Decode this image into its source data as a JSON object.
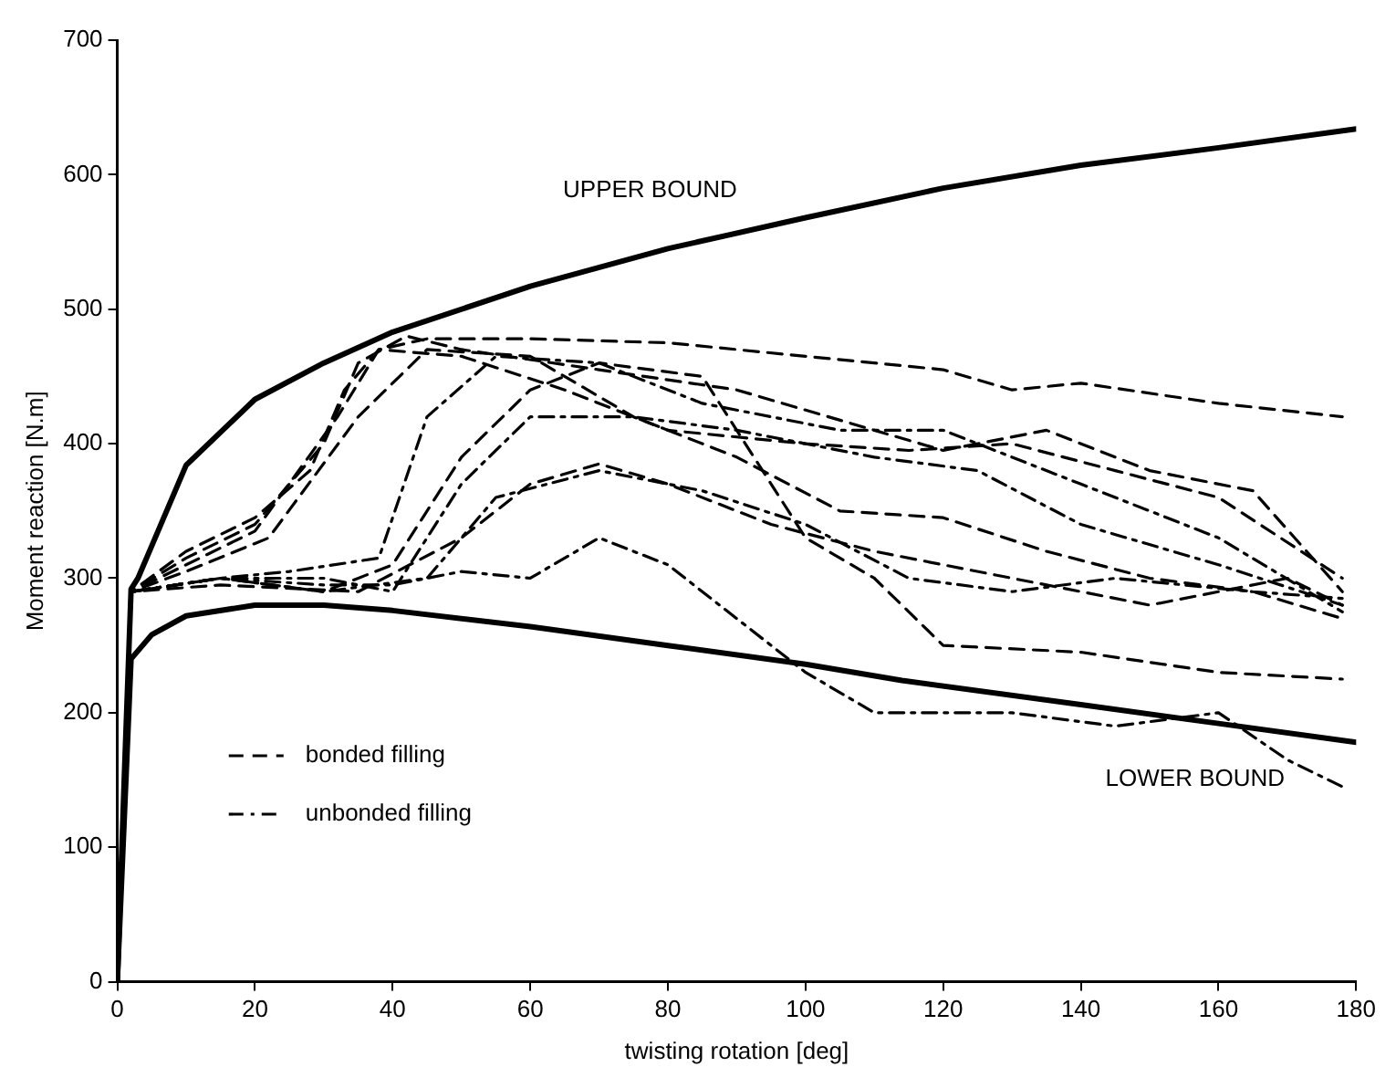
{
  "chart_data": {
    "type": "line",
    "xlabel": "twisting rotation [deg]",
    "ylabel": "Moment reaction [N.m]",
    "xlim": [
      0,
      180
    ],
    "ylim": [
      0,
      700
    ],
    "xticks": [
      0,
      20,
      40,
      60,
      80,
      100,
      120,
      140,
      160,
      180
    ],
    "yticks": [
      0,
      100,
      200,
      300,
      400,
      500,
      600,
      700
    ],
    "grid": false,
    "legend": "bottom left",
    "marker": "none",
    "annotations": [
      "UPPER BOUND",
      "LOWER BOUND"
    ],
    "series": [
      {
        "color": "#000000",
        "line_style": "solid",
        "x": [
          0,
          1,
          2,
          3,
          5,
          10,
          20,
          30,
          40,
          60,
          80,
          100,
          120,
          140,
          160,
          180
        ],
        "values": [
          0,
          150,
          292,
          300,
          324,
          384,
          433,
          460,
          483,
          517,
          545,
          568,
          590,
          607,
          620,
          634
        ]
      },
      {
        "color": "#000000",
        "line_style": "solid",
        "x": [
          0,
          1,
          2,
          5,
          10,
          20,
          30,
          40,
          60,
          80,
          100,
          114,
          140,
          160,
          180
        ],
        "values": [
          0,
          120,
          240,
          258,
          272,
          280,
          280,
          276,
          264,
          250,
          236,
          224,
          206,
          192,
          178
        ]
      },
      {
        "name": "bonded filling",
        "color": "#000000",
        "line_style": "dashed",
        "x": [
          0,
          2,
          10,
          20,
          28,
          33,
          38,
          45,
          60,
          80,
          100,
          120,
          130,
          140,
          160,
          178
        ],
        "values": [
          0,
          290,
          320,
          345,
          380,
          440,
          470,
          478,
          478,
          475,
          465,
          455,
          440,
          445,
          430,
          420
        ]
      },
      {
        "color": "#000000",
        "line_style": "dashed",
        "x": [
          0,
          2,
          10,
          20,
          30,
          35,
          42,
          50,
          70,
          90,
          110,
          120,
          135,
          150,
          165,
          178
        ],
        "values": [
          0,
          290,
          315,
          340,
          400,
          460,
          480,
          470,
          455,
          440,
          410,
          395,
          410,
          380,
          365,
          290
        ]
      },
      {
        "color": "#000000",
        "line_style": "dashed",
        "x": [
          0,
          2,
          10,
          20,
          32,
          38,
          50,
          65,
          80,
          100,
          115,
          130,
          145,
          160,
          178
        ],
        "values": [
          0,
          290,
          310,
          335,
          420,
          470,
          465,
          440,
          410,
          400,
          395,
          400,
          380,
          360,
          300
        ]
      },
      {
        "color": "#000000",
        "line_style": "dashed",
        "x": [
          0,
          2,
          10,
          22,
          35,
          45,
          60,
          75,
          90,
          105,
          120,
          135,
          150,
          165,
          178
        ],
        "values": [
          0,
          290,
          305,
          330,
          420,
          470,
          465,
          420,
          390,
          350,
          345,
          320,
          300,
          290,
          270
        ]
      },
      {
        "color": "#000000",
        "line_style": "dashed",
        "x": [
          0,
          2,
          15,
          30,
          40,
          50,
          60,
          70,
          85,
          100,
          110,
          120,
          140,
          160,
          178
        ],
        "values": [
          0,
          290,
          300,
          290,
          310,
          390,
          440,
          460,
          450,
          330,
          300,
          250,
          245,
          230,
          225
        ]
      },
      {
        "color": "#000000",
        "line_style": "dashed",
        "x": [
          0,
          2,
          15,
          35,
          50,
          60,
          70,
          80,
          95,
          110,
          130,
          150,
          170,
          178
        ],
        "values": [
          0,
          290,
          295,
          290,
          330,
          370,
          385,
          370,
          340,
          320,
          300,
          280,
          300,
          280
        ]
      },
      {
        "name": "unbonded filling",
        "color": "#000000",
        "line_style": "dashdot",
        "x": [
          0,
          2,
          15,
          25,
          38,
          45,
          55,
          70,
          85,
          105,
          120,
          140,
          160,
          178
        ],
        "values": [
          0,
          290,
          300,
          305,
          315,
          420,
          465,
          460,
          430,
          410,
          410,
          370,
          330,
          275
        ]
      },
      {
        "color": "#000000",
        "line_style": "dashdot",
        "x": [
          0,
          2,
          15,
          30,
          40,
          50,
          60,
          75,
          90,
          110,
          125,
          140,
          160,
          178
        ],
        "values": [
          0,
          290,
          300,
          300,
          290,
          370,
          420,
          420,
          410,
          390,
          380,
          340,
          310,
          280
        ]
      },
      {
        "color": "#000000",
        "line_style": "dashdot",
        "x": [
          0,
          2,
          15,
          30,
          45,
          55,
          70,
          85,
          100,
          115,
          130,
          145,
          165,
          178
        ],
        "values": [
          0,
          290,
          300,
          290,
          300,
          360,
          380,
          365,
          340,
          300,
          290,
          300,
          290,
          285
        ]
      },
      {
        "color": "#000000",
        "line_style": "dashdot",
        "x": [
          0,
          2,
          15,
          30,
          40,
          50,
          60,
          70,
          80,
          100,
          110,
          130,
          145,
          160,
          170,
          178
        ],
        "values": [
          0,
          290,
          300,
          295,
          295,
          305,
          300,
          330,
          310,
          230,
          200,
          200,
          190,
          200,
          165,
          145
        ]
      }
    ]
  }
}
